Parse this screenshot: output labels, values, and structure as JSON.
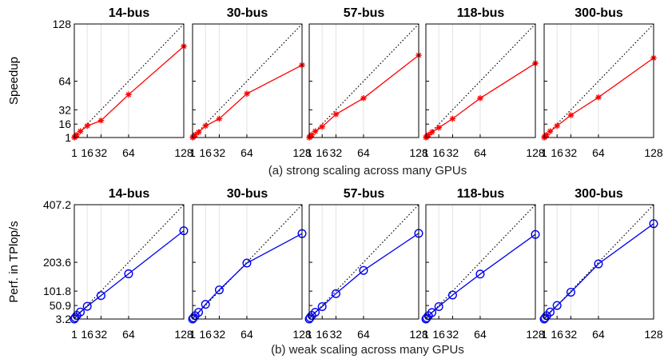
{
  "chart_data": [
    {
      "type": "line",
      "caption": "(a) strong scaling across many GPUs",
      "ylabel": "Speedup",
      "xlim": [
        1,
        128
      ],
      "ylim": [
        1,
        128
      ],
      "xticks": [
        1,
        16,
        32,
        64,
        128
      ],
      "xtick_labels": [
        "1",
        "16",
        "32",
        "64",
        "128"
      ],
      "yticks": [
        1,
        16,
        32,
        64,
        128
      ],
      "ytick_labels": [
        "1",
        "16",
        "32",
        "64",
        "128"
      ],
      "grid": "vertical",
      "marker": "asterisk",
      "color": "#ff0000",
      "ideal_line": "dotted",
      "x": [
        1,
        2,
        4,
        8,
        16,
        32,
        64,
        128
      ],
      "panels": [
        {
          "title": "14-bus",
          "values": [
            1,
            2,
            4,
            8,
            14,
            20,
            49,
            103
          ]
        },
        {
          "title": "30-bus",
          "values": [
            1,
            2,
            4,
            7,
            14,
            22,
            50,
            82
          ]
        },
        {
          "title": "57-bus",
          "values": [
            1,
            2,
            4,
            8,
            13,
            27,
            45,
            93
          ]
        },
        {
          "title": "118-bus",
          "values": [
            1,
            2,
            4,
            7,
            12,
            22,
            45,
            84
          ]
        },
        {
          "title": "300-bus",
          "values": [
            1,
            2,
            4,
            8,
            14,
            26,
            46,
            90
          ]
        }
      ]
    },
    {
      "type": "line",
      "caption": "(b) weak scaling across many GPUs",
      "ylabel": "Perf. in TPlop/s",
      "xlim": [
        1,
        128
      ],
      "ylim": [
        3.2,
        407.2
      ],
      "xticks": [
        1,
        16,
        32,
        64,
        128
      ],
      "xtick_labels": [
        "1",
        "16",
        "32",
        "64",
        "128"
      ],
      "yticks": [
        3.2,
        50.9,
        101.8,
        203.6,
        407.2
      ],
      "ytick_labels": [
        "3.2",
        "50.9",
        "101.8",
        "203.6",
        "407.2"
      ],
      "grid": "vertical",
      "marker": "circle",
      "color": "#0000ee",
      "ideal_line": "dotted",
      "x": [
        1,
        2,
        4,
        8,
        16,
        32,
        64,
        128
      ],
      "panels": [
        {
          "title": "14-bus",
          "values": [
            3.2,
            8,
            16,
            28,
            48,
            86,
            163,
            315
          ]
        },
        {
          "title": "30-bus",
          "values": [
            3.2,
            7,
            15,
            27,
            55,
            106,
            201,
            305
          ]
        },
        {
          "title": "57-bus",
          "values": [
            3.2,
            8,
            16,
            27,
            47,
            93,
            175,
            306
          ]
        },
        {
          "title": "118-bus",
          "values": [
            3.2,
            7,
            15,
            26,
            47,
            88,
            162,
            302
          ]
        },
        {
          "title": "300-bus",
          "values": [
            3.2,
            7,
            15,
            28,
            51,
            98,
            198,
            340
          ]
        }
      ]
    }
  ]
}
